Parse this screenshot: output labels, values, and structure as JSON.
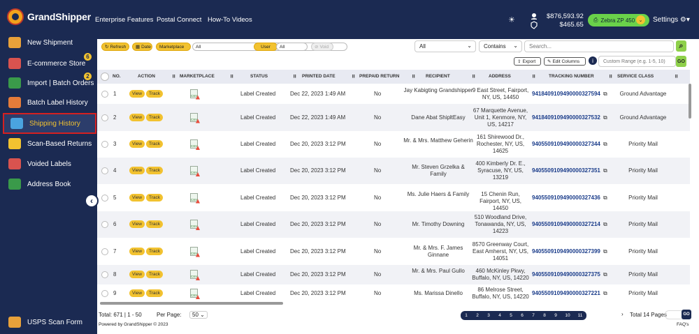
{
  "app": {
    "logo_text": "GrandShipper"
  },
  "sidebar": {
    "items": [
      {
        "label": "New Shipment",
        "icon": "truck-icon",
        "color": "#e8a13a",
        "badge": ""
      },
      {
        "label": "E-commerce Store",
        "icon": "store-icon",
        "color": "#d9534f",
        "badge": "6"
      },
      {
        "label": "Import | Batch Orders",
        "icon": "csv-import-icon",
        "color": "#3a9a4a",
        "badge": "2"
      },
      {
        "label": "Batch Label History",
        "icon": "label-history-icon",
        "color": "#e57c3a",
        "badge": ""
      },
      {
        "label": "Shipping History",
        "icon": "shipping-history-icon",
        "color": "#4aa3df",
        "badge": ""
      },
      {
        "label": "Scan-Based Returns",
        "icon": "returns-icon",
        "color": "#f2c230",
        "badge": ""
      },
      {
        "label": "Voided Labels",
        "icon": "voided-icon",
        "color": "#d9534f",
        "badge": ""
      },
      {
        "label": "Address Book",
        "icon": "address-book-icon",
        "color": "#3a9a4a",
        "badge": ""
      }
    ],
    "bottom": {
      "label": "USPS Scan Form",
      "icon": "scan-form-icon"
    }
  },
  "topbar": {
    "nav": [
      "Enterprise Features",
      "Postal Connect",
      "How-To Videos"
    ],
    "balance_primary": "$876,593.92",
    "balance_secondary": "$465.65",
    "printer": "Zebra ZP 450 ...",
    "settings": "Settings"
  },
  "toolbar": {
    "refresh": "Refresh",
    "date": "Date",
    "marketplace": "Marketplace",
    "marketplace_value": "All",
    "user": "User",
    "user_value": "All",
    "void": "Void",
    "filter_all": "All",
    "contains": "Contains",
    "search_placeholder": "Search...",
    "export": "Export",
    "edit_columns": "Edit Columns",
    "range_placeholder": "Custom Range (e.g. 1-5, 10)",
    "go": "GO"
  },
  "table": {
    "headers": [
      "NO.",
      "ACTION",
      "MARKETPLACE",
      "STATUS",
      "PRINTED DATE",
      "PREPAID RETURN",
      "RECIPIENT",
      "ADDRESS",
      "TRACKING NUMBER",
      "SERVICE CLASS"
    ],
    "view_label": "View",
    "track_label": "Track",
    "csv_label": "CSV",
    "rows": [
      {
        "no": "1",
        "status": "Label Created",
        "date": "Dec 22, 2023 1:49 AM",
        "prepaid": "No",
        "recipient": "Jay Kabigting Grandshipper",
        "address": "9 East Street, Fairport, NY, US, 14450",
        "tracking": "9418409109490000327594",
        "service": "Ground Advantage"
      },
      {
        "no": "2",
        "status": "Label Created",
        "date": "Dec 22, 2023 1:49 AM",
        "prepaid": "No",
        "recipient": "Dane Abat ShipltEasy",
        "address": "67 Marquette Avenue, Unit 1, Kenmore, NY, US, 14217",
        "tracking": "9418409109490000327532",
        "service": "Ground Advantage"
      },
      {
        "no": "3",
        "status": "Label Created",
        "date": "Dec 20, 2023 3:12 PM",
        "prepaid": "No",
        "recipient": "Mr. & Mrs. Matthew Geherin",
        "address": "161 Shirewood Dr., Rochester, NY, US, 14625",
        "tracking": "9405509109490000327344",
        "service": "Priority Mail"
      },
      {
        "no": "4",
        "status": "Label Created",
        "date": "Dec 20, 2023 3:12 PM",
        "prepaid": "No",
        "recipient": "Mr. Steven Grzelka & Family",
        "address": "400 Kimberly Dr. E., Syracuse, NY, US, 13219",
        "tracking": "9405509109490000327351",
        "service": "Priority Mail"
      },
      {
        "no": "5",
        "status": "Label Created",
        "date": "Dec 20, 2023 3:12 PM",
        "prepaid": "No",
        "recipient": "Ms. Julie Haers & Family",
        "address": "15 Chenin Run, Fairport, NY, US, 14450",
        "tracking": "9405509109490000327436",
        "service": "Priority Mail"
      },
      {
        "no": "6",
        "status": "Label Created",
        "date": "Dec 20, 2023 3:12 PM",
        "prepaid": "No",
        "recipient": "Mr. Timothy Downing",
        "address": "510 Woodland Drive, Tonawanda, NY, US, 14223",
        "tracking": "9405509109490000327214",
        "service": "Priority Mail"
      },
      {
        "no": "7",
        "status": "Label Created",
        "date": "Dec 20, 2023 3:12 PM",
        "prepaid": "No",
        "recipient": "Mr. & Mrs. F. James Ginnane",
        "address": "8570 Greenway Court, East Amherst, NY, US, 14051",
        "tracking": "9405509109490000327399",
        "service": "Priority Mail"
      },
      {
        "no": "8",
        "status": "Label Created",
        "date": "Dec 20, 2023 3:12 PM",
        "prepaid": "No",
        "recipient": "Mr. & Mrs. Paul Gullo",
        "address": "460 McKinley Pkwy, Buffalo, NY, US, 14220",
        "tracking": "9405509109490000327375",
        "service": "Priority Mail"
      },
      {
        "no": "9",
        "status": "Label Created",
        "date": "Dec 20, 2023 3:12 PM",
        "prepaid": "No",
        "recipient": "Ms. Marissa Dinello",
        "address": "86 Melrose Street, Buffalo, NY, US, 14220",
        "tracking": "9405509109490000327221",
        "service": "Priority Mail"
      }
    ]
  },
  "footer": {
    "total": "Total: 671 | 1 - 50",
    "per_page_label": "Per Page:",
    "per_page": "50",
    "powered": "Powered by GrandShipper © 2023",
    "pages": [
      "1",
      "2",
      "3",
      "4",
      "5",
      "6",
      "7",
      "8",
      "9",
      "10",
      "11"
    ],
    "total_pages": "Total 14 Pages",
    "go": "GO",
    "faq": "FAQ's"
  },
  "colors": {
    "navy": "#1b2a52",
    "accent_yellow": "#f2c230",
    "active_outline": "#d62020",
    "go_green": "#8ed04a"
  }
}
